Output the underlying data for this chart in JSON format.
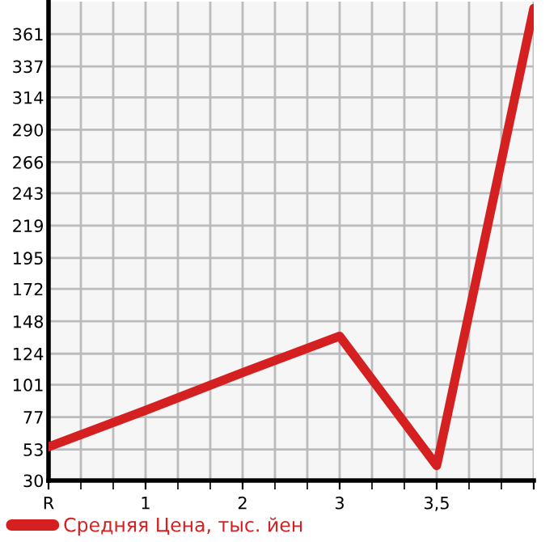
{
  "chart_data": {
    "type": "line",
    "categories": [
      "R",
      "1",
      "2",
      "3",
      "3,5",
      null
    ],
    "series": [
      {
        "name": "Средняя Цена, тыс. йен",
        "color": "#d42020",
        "values": [
          55,
          82,
          110,
          137,
          41,
          380
        ]
      }
    ],
    "ylim": [
      30,
      385
    ],
    "yticks": [
      30,
      53,
      77,
      101,
      124,
      148,
      172,
      195,
      219,
      243,
      266,
      290,
      314,
      337,
      361
    ],
    "grid": true,
    "legend": "bottom",
    "marker": "none",
    "line_style": "solid"
  }
}
